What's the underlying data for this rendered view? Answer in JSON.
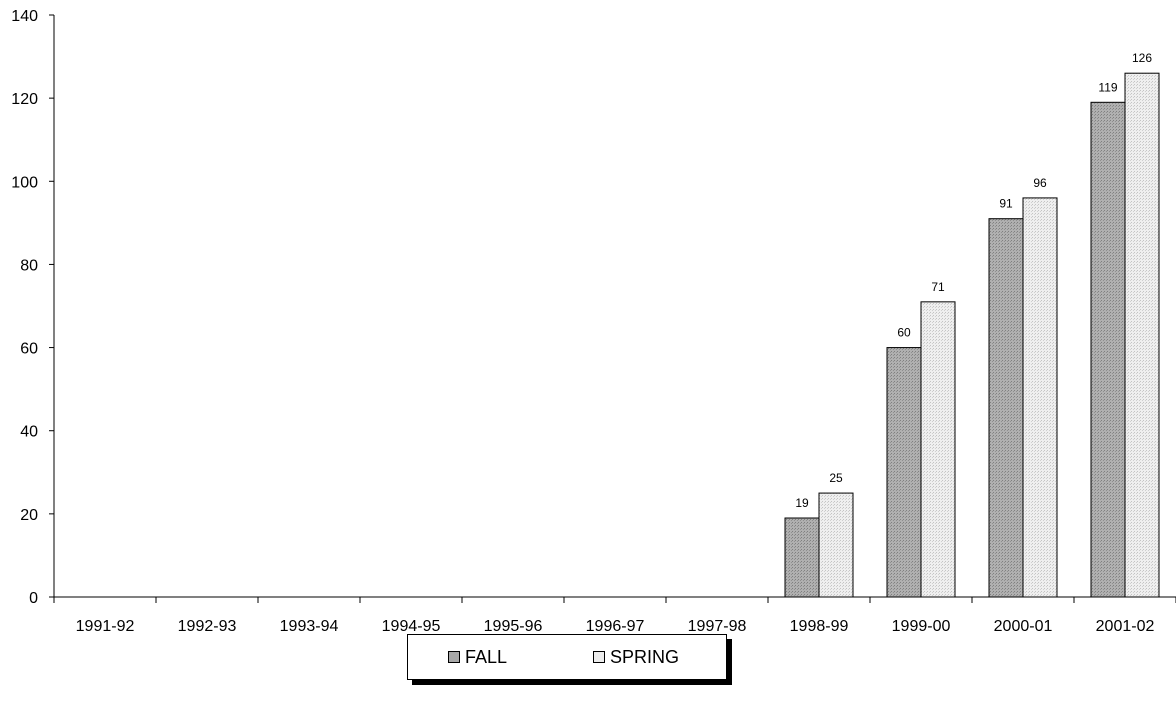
{
  "chart_data": {
    "type": "bar",
    "categories": [
      "1991-92",
      "1992-93",
      "1993-94",
      "1994-95",
      "1995-96",
      "1996-97",
      "1997-98",
      "1998-99",
      "1999-00",
      "2000-01",
      "2001-02"
    ],
    "series": [
      {
        "name": "FALL",
        "values": [
          0,
          0,
          0,
          0,
          0,
          0,
          0,
          19,
          60,
          91,
          119
        ],
        "color": "#a8a8a8"
      },
      {
        "name": "SPRING",
        "values": [
          0,
          0,
          0,
          0,
          0,
          0,
          0,
          25,
          71,
          96,
          126
        ],
        "color": "#e8e8e8"
      }
    ],
    "data_labels": [
      {
        "series": "FALL",
        "category": "1998-99",
        "text": "19"
      },
      {
        "series": "SPRING",
        "category": "1998-99",
        "text": "25"
      },
      {
        "series": "FALL",
        "category": "1999-00",
        "text": "60"
      },
      {
        "series": "SPRING",
        "category": "1999-00",
        "text": "71"
      },
      {
        "series": "FALL",
        "category": "2000-01",
        "text": "91"
      },
      {
        "series": "SPRING",
        "category": "2000-01",
        "text": "96"
      },
      {
        "series": "FALL",
        "category": "2001-02",
        "text": "119"
      },
      {
        "series": "SPRING",
        "category": "2001-02",
        "text": "126"
      }
    ],
    "ylim": [
      0,
      140
    ],
    "yticks": [
      0,
      20,
      40,
      60,
      80,
      100,
      120,
      140
    ],
    "title": "",
    "xlabel": "",
    "ylabel": "",
    "grid": false,
    "legend_position": "bottom-center"
  },
  "legend": {
    "fall_label": "FALL",
    "spring_label": "SPRING"
  }
}
